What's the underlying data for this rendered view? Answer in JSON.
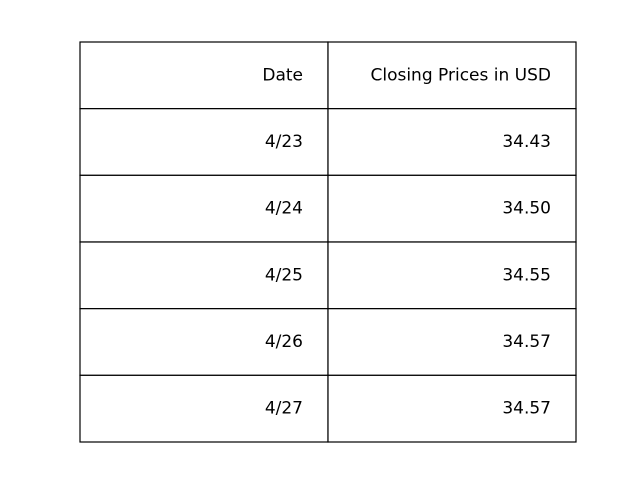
{
  "chart_data": {
    "type": "table",
    "columns": [
      "Date",
      "Closing Prices in USD"
    ],
    "rows": [
      [
        "4/23",
        "34.43"
      ],
      [
        "4/24",
        "34.50"
      ],
      [
        "4/25",
        "34.55"
      ],
      [
        "4/26",
        "34.57"
      ],
      [
        "4/27",
        "34.57"
      ]
    ]
  }
}
